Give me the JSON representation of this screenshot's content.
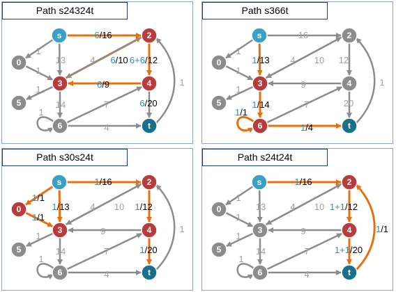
{
  "colors": {
    "orange": "#e8700c",
    "gray": "#8c8c8c",
    "red": "#b93c3c",
    "cyan": "#3aa0c8",
    "teal": "#1a6f8a",
    "blue": "#2e8fb0",
    "black": "#000000",
    "lightgray": "#a0a0a0"
  },
  "panels": [
    {
      "title": "Path s24324t",
      "nodes": {
        "s": "red_s",
        "2": "red",
        "3": "red",
        "4": "red",
        "t": "t",
        "0": "gray",
        "5": "gray",
        "6": "gray"
      },
      "labels": [
        [
          {
            "t": "6",
            "c": "blue"
          },
          {
            "t": "/16",
            "c": "black"
          }
        ],
        [
          {
            "t": "6",
            "c": "blue"
          },
          {
            "t": "/10",
            "c": "black"
          }
        ],
        [
          {
            "t": "6+6",
            "c": "blue"
          },
          {
            "t": "/12",
            "c": "black"
          }
        ],
        [
          {
            "t": "6",
            "c": "blue"
          },
          {
            "t": "/9",
            "c": "black"
          }
        ],
        [
          {
            "t": "6",
            "c": "blue"
          },
          {
            "t": "/20",
            "c": "black"
          }
        ],
        [
          {
            "t": "13",
            "c": "lightgray"
          }
        ],
        [
          {
            "t": "4",
            "c": "lightgray"
          }
        ],
        [
          {
            "t": "14",
            "c": "lightgray"
          }
        ],
        [
          {
            "t": "7",
            "c": "lightgray"
          }
        ],
        [
          {
            "t": "4",
            "c": "lightgray"
          }
        ],
        [
          {
            "t": "1",
            "c": "lightgray"
          }
        ],
        [
          {
            "t": "1",
            "c": "lightgray"
          }
        ],
        [
          {
            "t": "1",
            "c": "lightgray"
          }
        ],
        [
          {
            "t": "1",
            "c": "lightgray"
          }
        ],
        [
          {
            "t": "1",
            "c": "lightgray"
          }
        ]
      ]
    },
    {
      "title": "Path s366t",
      "labels": [
        [
          {
            "t": "16",
            "c": "lightgray"
          }
        ],
        [
          {
            "t": "10",
            "c": "lightgray"
          }
        ],
        [
          {
            "t": "12",
            "c": "lightgray"
          }
        ],
        [
          {
            "t": "9",
            "c": "lightgray"
          }
        ],
        [
          {
            "t": "20",
            "c": "lightgray"
          }
        ],
        [
          {
            "t": "1",
            "c": "blue"
          },
          {
            "t": "/13",
            "c": "black"
          }
        ],
        [
          {
            "t": "4",
            "c": "lightgray"
          }
        ],
        [
          {
            "t": "1",
            "c": "blue"
          },
          {
            "t": "/14",
            "c": "black"
          }
        ],
        [
          {
            "t": "7",
            "c": "lightgray"
          }
        ],
        [
          {
            "t": "1",
            "c": "blue"
          },
          {
            "t": "/4",
            "c": "black"
          }
        ],
        [
          {
            "t": "1",
            "c": "lightgray"
          }
        ],
        [
          {
            "t": "1",
            "c": "lightgray"
          }
        ],
        [
          {
            "t": "1",
            "c": "blue"
          },
          {
            "t": "/1",
            "c": "black"
          }
        ],
        [
          {
            "t": "1",
            "c": "lightgray"
          }
        ],
        [
          {
            "t": "1",
            "c": "lightgray"
          }
        ]
      ]
    },
    {
      "title": "Path s30s24t",
      "labels": [
        [
          {
            "t": "1",
            "c": "blue"
          },
          {
            "t": "/16",
            "c": "black"
          }
        ],
        [
          {
            "t": "10",
            "c": "lightgray"
          }
        ],
        [
          {
            "t": "1",
            "c": "blue"
          },
          {
            "t": "/12",
            "c": "black"
          }
        ],
        [
          {
            "t": "9",
            "c": "lightgray"
          }
        ],
        [
          {
            "t": "1",
            "c": "blue"
          },
          {
            "t": "/20",
            "c": "black"
          }
        ],
        [
          {
            "t": "1",
            "c": "blue"
          },
          {
            "t": "/13",
            "c": "black"
          }
        ],
        [
          {
            "t": "4",
            "c": "lightgray"
          }
        ],
        [
          {
            "t": "14",
            "c": "lightgray"
          }
        ],
        [
          {
            "t": "7",
            "c": "lightgray"
          }
        ],
        [
          {
            "t": "4",
            "c": "lightgray"
          }
        ],
        [
          {
            "t": "1",
            "c": "lightgray"
          }
        ],
        [
          {
            "t": "1",
            "c": "blue"
          },
          {
            "t": "/1",
            "c": "black"
          }
        ],
        [
          {
            "t": "1",
            "c": "lightgray"
          }
        ],
        [
          {
            "t": "1",
            "c": "blue"
          },
          {
            "t": "/1",
            "c": "black"
          }
        ],
        [
          {
            "t": "1",
            "c": "lightgray"
          }
        ]
      ]
    },
    {
      "title": "Path s24t24t",
      "labels": [
        [
          {
            "t": "1",
            "c": "blue"
          },
          {
            "t": "/16",
            "c": "black"
          }
        ],
        [
          {
            "t": "10",
            "c": "lightgray"
          }
        ],
        [
          {
            "t": "1+1",
            "c": "blue"
          },
          {
            "t": "/12",
            "c": "black"
          }
        ],
        [
          {
            "t": "9",
            "c": "lightgray"
          }
        ],
        [
          {
            "t": "1+1",
            "c": "blue"
          },
          {
            "t": "/20",
            "c": "black"
          }
        ],
        [
          {
            "t": "13",
            "c": "lightgray"
          }
        ],
        [
          {
            "t": "4",
            "c": "lightgray"
          }
        ],
        [
          {
            "t": "14",
            "c": "lightgray"
          }
        ],
        [
          {
            "t": "7",
            "c": "lightgray"
          }
        ],
        [
          {
            "t": "4",
            "c": "lightgray"
          }
        ],
        [
          {
            "t": "1",
            "c": "blue"
          },
          {
            "t": "/1",
            "c": "black"
          }
        ],
        [
          {
            "t": "1",
            "c": "lightgray"
          }
        ],
        [
          {
            "t": "1",
            "c": "lightgray"
          }
        ],
        [
          {
            "t": "1",
            "c": "lightgray"
          }
        ],
        [
          {
            "t": "1",
            "c": "lightgray"
          }
        ]
      ]
    }
  ]
}
